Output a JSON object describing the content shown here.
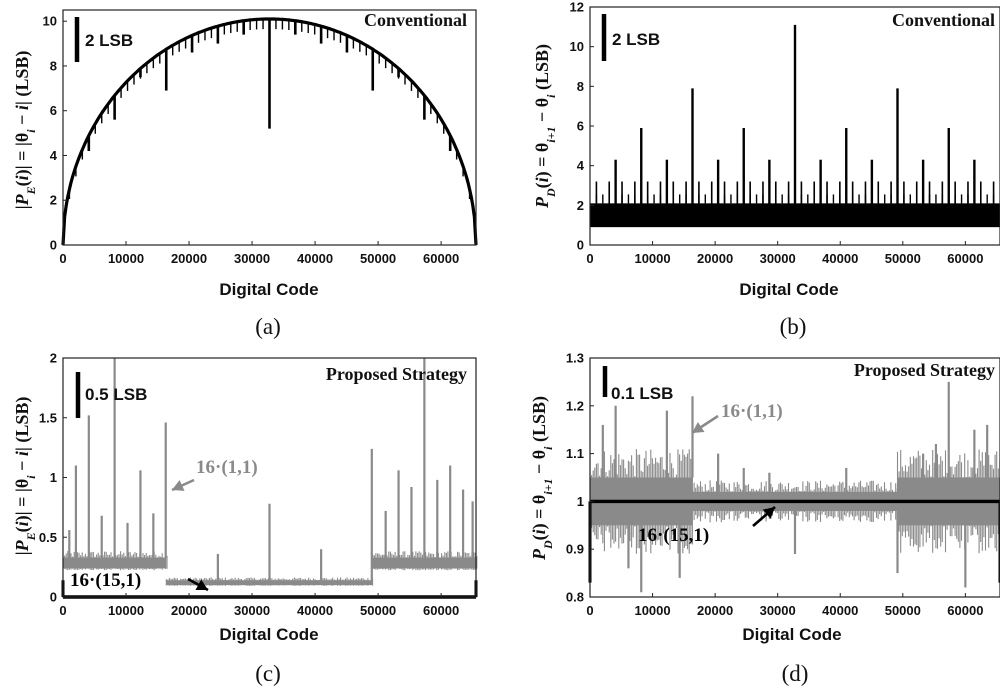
{
  "chart_data": [
    {
      "id": "a",
      "type": "line",
      "panel_label": "(a)",
      "corner_label": "Conventional",
      "scale_bar_label": "2 LSB",
      "xlabel": "Digital Code",
      "ylabel": {
        "pre": "|",
        "P": "P",
        "sub": "E",
        "mid": "(",
        "i": "i",
        "post": ")| = |θ",
        "sub2": "i",
        "post2": " − ",
        "i2": "i",
        "end": "| (LSB)"
      },
      "xlim": [
        0,
        65536
      ],
      "ylim": [
        0,
        10.5
      ],
      "xticks": [
        0,
        10000,
        20000,
        30000,
        40000,
        50000,
        60000
      ],
      "xtick_labels": [
        "0",
        "10000",
        "20000",
        "30000",
        "40000",
        "50000",
        "60000"
      ],
      "yticks": [
        0,
        2,
        4,
        6,
        8,
        10
      ],
      "ytick_labels": [
        "0",
        "2",
        "4",
        "6",
        "8",
        "10"
      ],
      "series": [
        {
          "color": "#000000",
          "shape": "semicircle",
          "peak": 10.1,
          "dips": [
            {
              "x": 32768,
              "y": 5.2
            },
            {
              "x": 16384,
              "y": 6.9
            },
            {
              "x": 49152,
              "y": 6.9
            },
            {
              "x": 8192,
              "y": 5.6
            },
            {
              "x": 24576,
              "y": 9.0
            },
            {
              "x": 40960,
              "y": 9.0
            },
            {
              "x": 57344,
              "y": 5.6
            },
            {
              "x": 4096,
              "y": 4.2
            },
            {
              "x": 12288,
              "y": 7.5
            },
            {
              "x": 20480,
              "y": 8.6
            },
            {
              "x": 28672,
              "y": 9.4
            },
            {
              "x": 36864,
              "y": 9.4
            },
            {
              "x": 45056,
              "y": 8.6
            },
            {
              "x": 53248,
              "y": 7.5
            },
            {
              "x": 61440,
              "y": 4.2
            }
          ]
        }
      ]
    },
    {
      "id": "b",
      "type": "line",
      "panel_label": "(b)",
      "corner_label": "Conventional",
      "scale_bar_label": "2 LSB",
      "xlabel": "Digital Code",
      "ylabel": {
        "P": "P",
        "sub": "D",
        "mid": "(",
        "i": "i",
        "post": ") = θ",
        "sub2": "i+1",
        "post2": " − θ",
        "sub3": "i",
        "end": " (LSB)"
      },
      "xlim": [
        0,
        65536
      ],
      "ylim": [
        0,
        12
      ],
      "xticks": [
        0,
        10000,
        20000,
        30000,
        40000,
        50000,
        60000
      ],
      "xtick_labels": [
        "0",
        "10000",
        "20000",
        "30000",
        "40000",
        "50000",
        "60000"
      ],
      "yticks": [
        0,
        2,
        4,
        6,
        8,
        10,
        12
      ],
      "ytick_labels": [
        "0",
        "2",
        "4",
        "6",
        "8",
        "10",
        "12"
      ],
      "series": [
        {
          "color": "#000000",
          "base_band": [
            0.9,
            2.1
          ],
          "spikes": [
            {
              "x": 32768,
              "y": 11.1
            },
            {
              "x": 16384,
              "y": 7.9
            },
            {
              "x": 49152,
              "y": 7.9
            },
            {
              "x": 8192,
              "y": 5.9
            },
            {
              "x": 24576,
              "y": 5.9
            },
            {
              "x": 40960,
              "y": 5.9
            },
            {
              "x": 57344,
              "y": 5.9
            },
            {
              "x": 4096,
              "y": 4.3
            },
            {
              "x": 12288,
              "y": 4.3
            },
            {
              "x": 20480,
              "y": 4.3
            },
            {
              "x": 28672,
              "y": 4.3
            },
            {
              "x": 36864,
              "y": 4.3
            },
            {
              "x": 45056,
              "y": 4.3
            },
            {
              "x": 53248,
              "y": 4.3
            },
            {
              "x": 61440,
              "y": 4.3
            }
          ]
        }
      ]
    },
    {
      "id": "c",
      "type": "line",
      "panel_label": "(c)",
      "corner_label": "Proposed Strategy",
      "scale_bar_label": "0.5 LSB",
      "xlabel": "Digital Code",
      "ylabel": {
        "pre": "|",
        "P": "P",
        "sub": "E",
        "mid": "(",
        "i": "i",
        "post": ")| = |θ",
        "sub2": "i",
        "post2": " − ",
        "i2": "i",
        "end": "| (LSB)"
      },
      "xlim": [
        0,
        65536
      ],
      "ylim": [
        0,
        2
      ],
      "xticks": [
        0,
        10000,
        20000,
        30000,
        40000,
        50000,
        60000
      ],
      "xtick_labels": [
        "0",
        "10000",
        "20000",
        "30000",
        "40000",
        "50000",
        "60000"
      ],
      "yticks": [
        0,
        0.5,
        1,
        1.5,
        2
      ],
      "ytick_labels": [
        "0",
        "0.5",
        "1",
        "1.5",
        "2"
      ],
      "annotations": [
        {
          "text": "16·(1,1)",
          "color": "#8a8a8a"
        },
        {
          "text": "16·(15,1)",
          "color": "#000000"
        }
      ],
      "series": [
        {
          "name": "16·(1,1)",
          "color": "#8a8a8a",
          "segments": [
            {
              "x0": 0,
              "x1": 16384,
              "band": [
                0.24,
                0.33
              ]
            },
            {
              "x0": 16384,
              "x1": 49152,
              "band": [
                0.1,
                0.14
              ]
            },
            {
              "x0": 49152,
              "x1": 65536,
              "band": [
                0.24,
                0.33
              ]
            }
          ],
          "spikes": [
            {
              "x": 8192,
              "y": 2.0
            },
            {
              "x": 57344,
              "y": 2.0
            },
            {
              "x": 4096,
              "y": 1.52
            },
            {
              "x": 16300,
              "y": 1.46
            },
            {
              "x": 49000,
              "y": 1.24
            },
            {
              "x": 2048,
              "y": 1.1
            },
            {
              "x": 12288,
              "y": 1.06
            },
            {
              "x": 61440,
              "y": 1.1
            },
            {
              "x": 53248,
              "y": 1.06
            },
            {
              "x": 59392,
              "y": 0.98
            },
            {
              "x": 55296,
              "y": 0.92
            },
            {
              "x": 63488,
              "y": 0.9
            },
            {
              "x": 32768,
              "y": 0.78
            },
            {
              "x": 40960,
              "y": 0.4
            },
            {
              "x": 24576,
              "y": 0.36
            },
            {
              "x": 6144,
              "y": 0.68
            },
            {
              "x": 10240,
              "y": 0.62
            },
            {
              "x": 14336,
              "y": 0.7
            },
            {
              "x": 51200,
              "y": 0.72
            },
            {
              "x": 1000,
              "y": 0.56
            },
            {
              "x": 65000,
              "y": 0.8
            }
          ]
        },
        {
          "name": "16·(15,1)",
          "color": "#000000",
          "base": 0.0,
          "edge_spikes": [
            {
              "x": 0,
              "y": 0.14
            },
            {
              "x": 65536,
              "y": 0.14
            }
          ]
        }
      ]
    },
    {
      "id": "d",
      "type": "line",
      "panel_label": "(d)",
      "corner_label": "Proposed Strategy",
      "scale_bar_label": "0.1 LSB",
      "xlabel": "Digital Code",
      "ylabel": {
        "P": "P",
        "sub": "D",
        "mid": "(",
        "i": "i",
        "post": ") = θ",
        "sub2": "i+1",
        "post2": " − θ",
        "sub3": "i",
        "end": " (LSB)"
      },
      "xlim": [
        0,
        65536
      ],
      "ylim": [
        0.8,
        1.3
      ],
      "xticks": [
        0,
        10000,
        20000,
        30000,
        40000,
        50000,
        60000
      ],
      "xtick_labels": [
        "0",
        "10000",
        "20000",
        "30000",
        "40000",
        "50000",
        "60000"
      ],
      "yticks": [
        0.8,
        0.9,
        1.0,
        1.1,
        1.2,
        1.3
      ],
      "ytick_labels": [
        "0.8",
        "0.9",
        "1",
        "1.1",
        "1.2",
        "1.3"
      ],
      "annotations": [
        {
          "text": "16·(1,1)",
          "color": "#8a8a8a"
        },
        {
          "text": "16·(15,1)",
          "color": "#000000"
        }
      ],
      "series": [
        {
          "name": "16·(1,1)",
          "color": "#8a8a8a",
          "segments": [
            {
              "x0": 0,
              "x1": 16384,
              "band": [
                0.95,
                1.05
              ]
            },
            {
              "x0": 16384,
              "x1": 49152,
              "band": [
                0.98,
                1.02
              ]
            },
            {
              "x0": 49152,
              "x1": 65536,
              "band": [
                0.95,
                1.05
              ]
            }
          ],
          "spikes": [
            {
              "x": 57344,
              "y": 1.25
            },
            {
              "x": 49152,
              "y": 0.85
            },
            {
              "x": 8192,
              "y": 0.81
            },
            {
              "x": 60000,
              "y": 0.82
            },
            {
              "x": 16384,
              "y": 1.22
            },
            {
              "x": 4096,
              "y": 1.2
            },
            {
              "x": 12288,
              "y": 1.19
            },
            {
              "x": 20480,
              "y": 1.1
            },
            {
              "x": 32768,
              "y": 0.89
            },
            {
              "x": 24576,
              "y": 1.07
            },
            {
              "x": 28672,
              "y": 1.06
            },
            {
              "x": 40960,
              "y": 1.07
            },
            {
              "x": 53248,
              "y": 1.1
            },
            {
              "x": 61440,
              "y": 1.15
            },
            {
              "x": 63488,
              "y": 1.16
            },
            {
              "x": 2048,
              "y": 1.16
            },
            {
              "x": 6144,
              "y": 0.86
            },
            {
              "x": 14336,
              "y": 0.84
            },
            {
              "x": 55296,
              "y": 1.12
            }
          ]
        },
        {
          "name": "16·(15,1)",
          "color": "#000000",
          "base": 1.0,
          "edge_spikes": [
            {
              "x": 0,
              "y": 0.83
            },
            {
              "x": 65536,
              "y": 0.83
            }
          ]
        }
      ]
    }
  ]
}
